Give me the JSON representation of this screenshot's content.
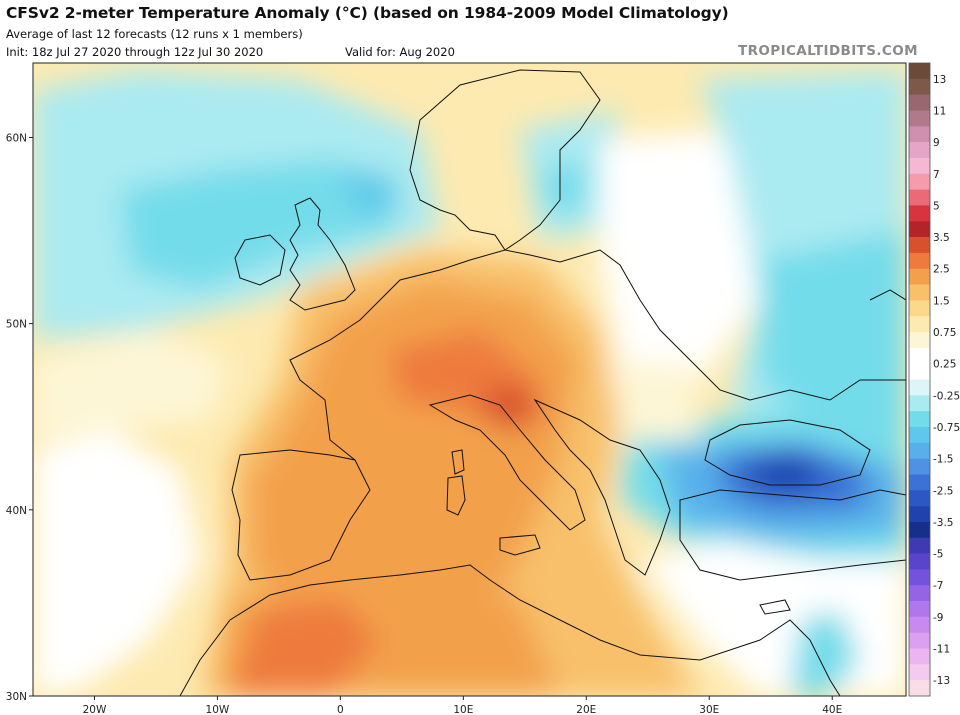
{
  "header": {
    "title": "CFSv2 2-meter Temperature Anomaly (°C) (based on 1984-2009 Model Climatology)",
    "subtitle": "Average of last 12 forecasts (12 runs x 1 members)",
    "init": "Init: 18z Jul 27 2020 through 12z Jul 30 2020",
    "valid": "Valid for: Aug 2020",
    "brand": "TROPICALTIDBITS.COM"
  },
  "map": {
    "region": "Europe, North Africa, Middle East",
    "lon_range": [
      -25,
      46
    ],
    "lat_range": [
      30,
      64
    ],
    "lat_ticks": [
      {
        "value": 60,
        "label": "60N"
      },
      {
        "value": 50,
        "label": "50N"
      },
      {
        "value": 40,
        "label": "40N"
      },
      {
        "value": 30,
        "label": "30N"
      }
    ],
    "lon_ticks": [
      {
        "value": -20,
        "label": "20W"
      },
      {
        "value": -10,
        "label": "10W"
      },
      {
        "value": 0,
        "label": "0"
      },
      {
        "value": 10,
        "label": "10E"
      },
      {
        "value": 20,
        "label": "20E"
      },
      {
        "value": 30,
        "label": "30E"
      },
      {
        "value": 40,
        "label": "40E"
      }
    ]
  },
  "colorbar": {
    "labels": [
      "13",
      "11",
      "9",
      "7",
      "5",
      "3.5",
      "2.5",
      "1.5",
      "0.75",
      "0.25",
      "-0.25",
      "-0.75",
      "-1.5",
      "-2.5",
      "-3.5",
      "-5",
      "-7",
      "-9",
      "-11",
      "-13"
    ],
    "colors": [
      "#6b4a3a",
      "#7e5848",
      "#98676f",
      "#b07a8c",
      "#cf8fae",
      "#e6a4c6",
      "#f3b9d3",
      "#f49cab",
      "#ea6a78",
      "#d7343f",
      "#b32428",
      "#d8512d",
      "#ee7a3e",
      "#f3a04c",
      "#f8c06a",
      "#fbd98a",
      "#fdeab0",
      "#fdf6d6",
      "#ffffff",
      "#ffffff",
      "#dcf5f8",
      "#aaeaf1",
      "#73dcea",
      "#5ec8ea",
      "#58b0ea",
      "#4f92e4",
      "#3b72d6",
      "#2c58c6",
      "#1f42ad",
      "#162f8a",
      "#3d3ab3",
      "#5a44cc",
      "#7552dc",
      "#9564e4",
      "#b077ea",
      "#c88aee",
      "#dca0f0",
      "#ebb6f0",
      "#f4cbef",
      "#f8dde6"
    ]
  }
}
